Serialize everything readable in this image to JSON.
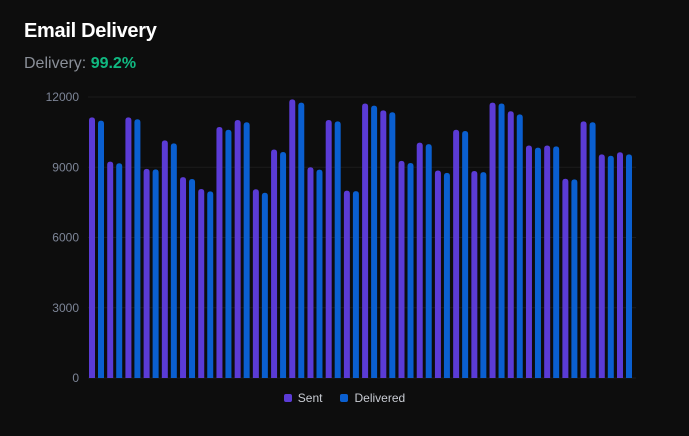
{
  "header": {
    "title": "Email Delivery",
    "metric_label": "Delivery:",
    "metric_value": "99.2%"
  },
  "colors": {
    "sent": "#5b3bd6",
    "delivered": "#0a5fd0",
    "metric": "#10b981",
    "background": "#0d0d0d"
  },
  "chart_data": {
    "type": "bar",
    "title": "",
    "xlabel": "",
    "ylabel": "",
    "ylim": [
      0,
      12000
    ],
    "yticks": [
      0,
      3000,
      6000,
      9000,
      12000
    ],
    "grid": true,
    "legend": "bottom-center",
    "series": [
      {
        "name": "Sent",
        "values": [
          11130,
          9240,
          11130,
          8930,
          10150,
          8580,
          8070,
          10720,
          11020,
          8060,
          9760,
          11900,
          9000,
          11020,
          8000,
          11720,
          11430,
          9270,
          10050,
          8860,
          10600,
          8840,
          11760,
          11390,
          9930,
          9930,
          8510,
          10960,
          9550,
          9640
        ]
      },
      {
        "name": "Delivered",
        "values": [
          10990,
          9170,
          11050,
          8910,
          10020,
          8500,
          7970,
          10600,
          10920,
          7910,
          9650,
          11760,
          8900,
          10960,
          7980,
          11630,
          11350,
          9180,
          9990,
          8760,
          10550,
          8790,
          11720,
          11260,
          9840,
          9890,
          8480,
          10920,
          9490,
          9550
        ]
      }
    ]
  }
}
